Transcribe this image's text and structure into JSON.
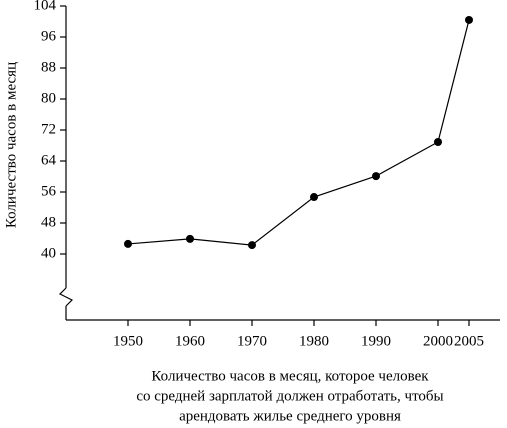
{
  "chart_data": {
    "type": "line",
    "ylabel": "Количество часов в месяц",
    "xlabel": [
      "Количество часов в месяц, которое человек",
      "со средней зарплатой должен отработать, чтобы",
      "арендовать жилье среднего уровня"
    ],
    "x": [
      1950,
      1960,
      1970,
      1980,
      1990,
      2000,
      2005
    ],
    "series": [
      {
        "name": "Количество часов",
        "color": "#000000",
        "values": [
          42.6,
          43.9,
          42.3,
          54.7,
          60.1,
          68.9,
          100.4
        ]
      }
    ],
    "xlim": [
      1940,
      2010
    ],
    "xticks": [
      1950,
      1960,
      1970,
      1980,
      1990,
      2000,
      2005
    ],
    "ylim": [
      40,
      104
    ],
    "yticks": [
      40,
      48,
      56,
      64,
      72,
      80,
      88,
      96,
      104
    ]
  }
}
